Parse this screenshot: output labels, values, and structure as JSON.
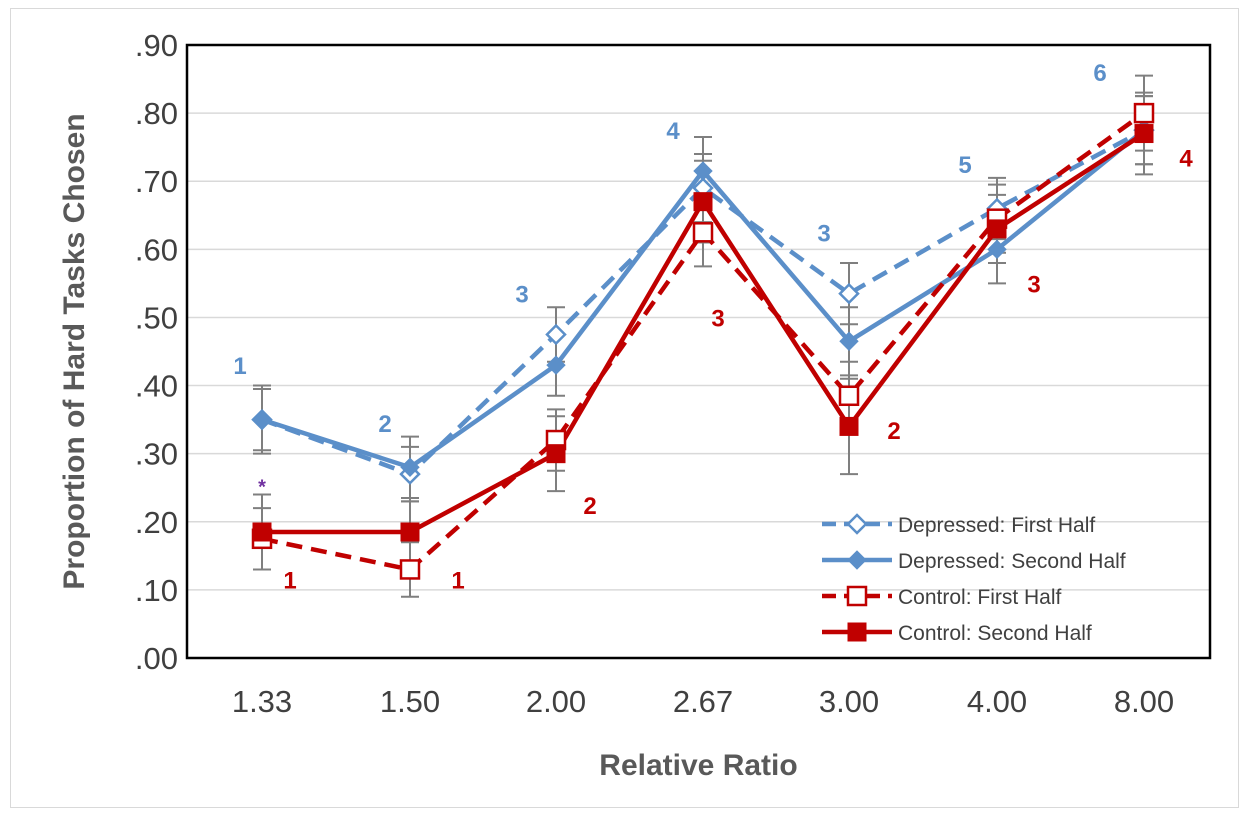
{
  "chart_data": {
    "type": "line",
    "xlabel": "Relative Ratio",
    "ylabel": "Proportion of Hard Tasks Chosen",
    "categories": [
      "1.33",
      "1.50",
      "2.00",
      "2.67",
      "3.00",
      "4.00",
      "8.00"
    ],
    "ylim": [
      0,
      0.9
    ],
    "yticks": [
      ".00",
      ".10",
      ".20",
      ".30",
      ".40",
      ".50",
      ".60",
      ".70",
      ".80",
      ".90"
    ],
    "grid": "horizontal",
    "legend_position": "bottom-right",
    "series": [
      {
        "name": "Depressed: First Half",
        "color": "#5b8fc9",
        "line": "dashed",
        "marker": "open-diamond",
        "values": [
          0.35,
          0.27,
          0.475,
          0.69,
          0.535,
          0.66,
          0.775
        ],
        "err": [
          0.045,
          0.04,
          0.04,
          0.05,
          0.045,
          0.045,
          0.05
        ]
      },
      {
        "name": "Depressed: Second Half",
        "color": "#5b8fc9",
        "line": "solid",
        "marker": "filled-diamond",
        "values": [
          0.35,
          0.28,
          0.43,
          0.715,
          0.465,
          0.6,
          0.775
        ],
        "err": [
          0.05,
          0.045,
          0.045,
          0.05,
          0.05,
          0.05,
          0.05
        ]
      },
      {
        "name": "Control: First Half",
        "color": "#c00000",
        "line": "dashed",
        "marker": "open-square",
        "values": [
          0.175,
          0.13,
          0.32,
          0.625,
          0.385,
          0.645,
          0.8
        ],
        "err": [
          0.045,
          0.04,
          0.045,
          0.05,
          0.05,
          0.05,
          0.055
        ]
      },
      {
        "name": "Control: Second Half",
        "color": "#c00000",
        "line": "solid",
        "marker": "filled-square",
        "values": [
          0.185,
          0.185,
          0.3,
          0.67,
          0.34,
          0.63,
          0.77
        ],
        "err": [
          0.055,
          0.045,
          0.055,
          0.06,
          0.07,
          0.05,
          0.06
        ]
      }
    ],
    "annotations": [
      {
        "text": "1",
        "group": "depressed",
        "category": "1.33",
        "y": 0.43,
        "dx": -22
      },
      {
        "text": "*",
        "group": "significance",
        "category": "1.33",
        "y": 0.255,
        "dx": 0
      },
      {
        "text": "1",
        "group": "control",
        "category": "1.33",
        "y": 0.115,
        "dx": 28
      },
      {
        "text": "2",
        "group": "depressed",
        "category": "1.50",
        "y": 0.345,
        "dx": -25
      },
      {
        "text": "1",
        "group": "control",
        "category": "1.50",
        "y": 0.115,
        "dx": 48
      },
      {
        "text": "3",
        "group": "depressed",
        "category": "2.00",
        "y": 0.535,
        "dx": -34
      },
      {
        "text": "2",
        "group": "control",
        "category": "2.00",
        "y": 0.225,
        "dx": 34
      },
      {
        "text": "4",
        "group": "depressed",
        "category": "2.67",
        "y": 0.775,
        "dx": -30
      },
      {
        "text": "3",
        "group": "control",
        "category": "2.67",
        "y": 0.5,
        "dx": 15
      },
      {
        "text": "3",
        "group": "depressed",
        "category": "3.00",
        "y": 0.625,
        "dx": -25
      },
      {
        "text": "2",
        "group": "control",
        "category": "3.00",
        "y": 0.335,
        "dx": 45
      },
      {
        "text": "5",
        "group": "depressed",
        "category": "4.00",
        "y": 0.725,
        "dx": -32
      },
      {
        "text": "3",
        "group": "control",
        "category": "4.00",
        "y": 0.55,
        "dx": 37
      },
      {
        "text": "6",
        "group": "depressed",
        "category": "8.00",
        "y": 0.86,
        "dx": -44
      },
      {
        "text": "4",
        "group": "control",
        "category": "8.00",
        "y": 0.735,
        "dx": 42
      }
    ],
    "annotation_colors": {
      "depressed": "#5b8fc9",
      "control": "#c00000",
      "significance": "#7030a0"
    },
    "errorbar_color": "#7f7f7f"
  }
}
